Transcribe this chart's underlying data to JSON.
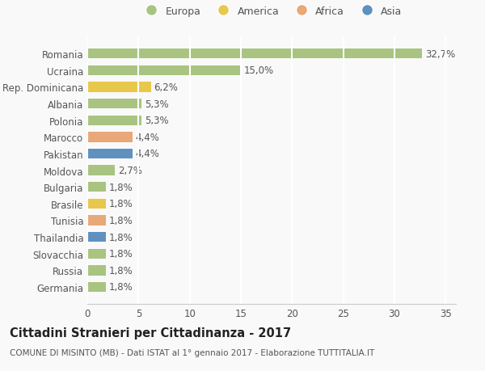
{
  "categories": [
    "Germania",
    "Russia",
    "Slovacchia",
    "Thailandia",
    "Tunisia",
    "Brasile",
    "Bulgaria",
    "Moldova",
    "Pakistan",
    "Marocco",
    "Polonia",
    "Albania",
    "Rep. Dominicana",
    "Ucraina",
    "Romania"
  ],
  "values": [
    1.8,
    1.8,
    1.8,
    1.8,
    1.8,
    1.8,
    1.8,
    2.7,
    4.4,
    4.4,
    5.3,
    5.3,
    6.2,
    15.0,
    32.7
  ],
  "continents": [
    "Europa",
    "Europa",
    "Europa",
    "Asia",
    "Africa",
    "America",
    "Europa",
    "Europa",
    "Asia",
    "Africa",
    "Europa",
    "Europa",
    "America",
    "Europa",
    "Europa"
  ],
  "labels": [
    "1,8%",
    "1,8%",
    "1,8%",
    "1,8%",
    "1,8%",
    "1,8%",
    "1,8%",
    "2,7%",
    "4,4%",
    "4,4%",
    "5,3%",
    "5,3%",
    "6,2%",
    "15,0%",
    "32,7%"
  ],
  "colors": {
    "Europa": "#a8c480",
    "America": "#e8c84a",
    "Africa": "#e8a878",
    "Asia": "#6090c0"
  },
  "legend_order": [
    "Europa",
    "America",
    "Africa",
    "Asia"
  ],
  "title": "Cittadini Stranieri per Cittadinanza - 2017",
  "subtitle": "COMUNE DI MISINTO (MB) - Dati ISTAT al 1° gennaio 2017 - Elaborazione TUTTITALIA.IT",
  "xlim": [
    0,
    36
  ],
  "xticks": [
    0,
    5,
    10,
    15,
    20,
    25,
    30,
    35
  ],
  "background_color": "#f9f9f9",
  "grid_color": "#ffffff",
  "label_fontsize": 8.5,
  "ytick_fontsize": 8.5,
  "xtick_fontsize": 8.5,
  "title_fontsize": 10.5,
  "subtitle_fontsize": 7.5,
  "legend_fontsize": 9
}
